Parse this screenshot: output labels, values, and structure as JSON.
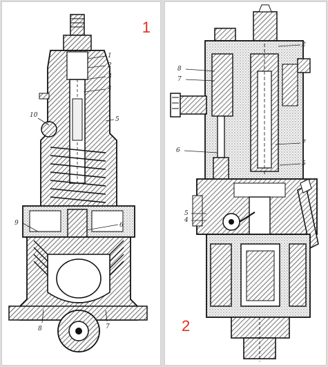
{
  "figure_numbers": {
    "first": "1",
    "second": "2"
  },
  "callouts_1": [
    "1",
    "2",
    "3",
    "4",
    "5",
    "10",
    "9",
    "6",
    "8",
    "7"
  ],
  "callouts_2": [
    "8",
    "7",
    "6",
    "5",
    "4",
    "2",
    "7",
    "5"
  ],
  "colors": {
    "background": "#dcdcdc",
    "panel": "#ffffff",
    "ink": "#1a1a1a",
    "accent": "#e0301e"
  }
}
